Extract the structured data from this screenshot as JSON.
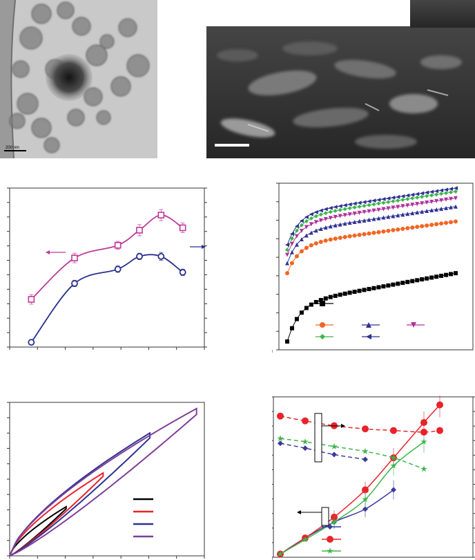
{
  "tem_image": {
    "scale_bar_label": "200 nm"
  },
  "chart_data": [
    {
      "type": "line",
      "panel": "middle-left",
      "x": [
        1,
        2,
        3,
        3.5,
        4,
        4.5
      ],
      "series": [
        {
          "values": [
            0.3,
            0.56,
            0.64,
            0.735,
            0.83,
            0.75
          ],
          "error": [
            0.03,
            0.03,
            0.025,
            0.035,
            0.035,
            0.03
          ],
          "color": "#c0369a",
          "marker": "open-square",
          "axis": "left"
        },
        {
          "values": [
            0.03,
            0.4,
            0.49,
            0.57,
            0.57,
            0.47
          ],
          "error": [
            0.0,
            0.02,
            0.02,
            0.02,
            0.025,
            0.02
          ],
          "color": "#2a2f8f",
          "marker": "open-circle",
          "axis": "right"
        }
      ],
      "arrows": [
        {
          "direction": "left",
          "color": "#c0369a"
        },
        {
          "direction": "right",
          "color": "#2a2f8f"
        }
      ],
      "grid": false
    },
    {
      "type": "scatter",
      "panel": "middle-right",
      "series": [
        {
          "color": "#000000",
          "marker": "square",
          "values_start": 0.05,
          "values_end": 0.46
        },
        {
          "color": "#f26522",
          "marker": "circle",
          "values_start": 0.46,
          "values_end": 0.77
        },
        {
          "color": "#2e3192",
          "marker": "triangle-up",
          "values_start": 0.52,
          "values_end": 0.86
        },
        {
          "color": "#b0309c",
          "marker": "triangle-down",
          "values_start": 0.57,
          "values_end": 0.91
        },
        {
          "color": "#3cb54a",
          "marker": "diamond",
          "values_start": 0.6,
          "values_end": 0.95
        },
        {
          "color": "#2e3192",
          "marker": "triangle-left",
          "values_start": 0.63,
          "values_end": 0.97
        }
      ],
      "grid": false
    },
    {
      "type": "line",
      "panel": "bottom-left",
      "loops": [
        {
          "color": "#000000",
          "peak": [
            0.29,
            0.32
          ]
        },
        {
          "color": "#e8232a",
          "peak": [
            0.48,
            0.54
          ]
        },
        {
          "color": "#2e3192",
          "peak": [
            0.72,
            0.8
          ]
        },
        {
          "color": "#7f3f98",
          "peak": [
            0.96,
            0.96
          ]
        }
      ],
      "grid": false
    },
    {
      "type": "line",
      "panel": "bottom-right",
      "series": [
        {
          "color": "#3a3a9e",
          "marker": "diamond",
          "style": "solid",
          "x": [
            0,
            1,
            2,
            3,
            4
          ],
          "values": [
            0.02,
            0.12,
            0.22,
            0.3,
            0.42
          ]
        },
        {
          "color": "#e8232a",
          "marker": "circle",
          "style": "solid",
          "x": [
            0,
            1,
            2,
            3,
            4,
            5,
            6
          ],
          "values": [
            0.02,
            0.12,
            0.25,
            0.42,
            0.62,
            0.84,
            0.95
          ]
        },
        {
          "color": "#3cb54a",
          "marker": "star",
          "style": "solid",
          "x": [
            0,
            1,
            2,
            3,
            4,
            5
          ],
          "values": [
            0.02,
            0.11,
            0.22,
            0.36,
            0.57,
            0.72
          ]
        },
        {
          "color": "#3a3a9e",
          "marker": "diamond",
          "style": "dashed",
          "x": [
            0,
            1,
            2,
            3
          ],
          "values": [
            0.71,
            0.68,
            0.64,
            0.61
          ]
        },
        {
          "color": "#e8232a",
          "marker": "circle",
          "style": "dashed",
          "x": [
            0,
            1,
            2,
            3,
            4,
            5,
            6
          ],
          "values": [
            0.88,
            0.85,
            0.82,
            0.8,
            0.79,
            0.78,
            0.79
          ]
        },
        {
          "color": "#3cb54a",
          "marker": "star",
          "style": "dashed",
          "x": [
            0,
            1,
            2,
            3,
            4,
            5
          ],
          "values": [
            0.74,
            0.72,
            0.69,
            0.66,
            0.62,
            0.55
          ]
        }
      ],
      "arrows": [
        {
          "direction": "right"
        },
        {
          "direction": "left"
        }
      ],
      "grid": false
    }
  ]
}
